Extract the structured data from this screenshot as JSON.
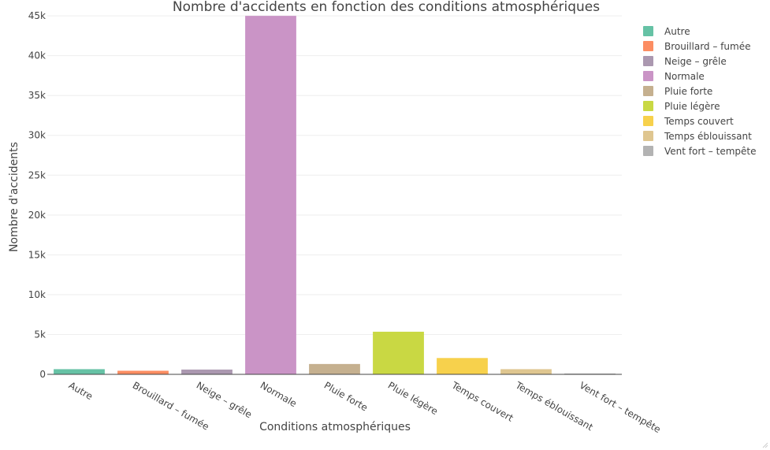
{
  "chart_data": {
    "type": "bar",
    "title": "Nombre d'accidents en fonction des conditions atmosphériques",
    "xlabel": "Conditions atmosphériques",
    "ylabel": "Nombre d'accidents",
    "ylim": [
      0,
      46000
    ],
    "yticks": [
      0,
      5000,
      10000,
      15000,
      20000,
      25000,
      30000,
      35000,
      40000,
      45000
    ],
    "ytick_labels": [
      "0",
      "5k",
      "10k",
      "15k",
      "20k",
      "25k",
      "30k",
      "35k",
      "40k",
      "45k"
    ],
    "grid": true,
    "legend_position": "top-right",
    "categories": [
      "Autre",
      "Brouillard – fumée",
      "Neige – grêle",
      "Normale",
      "Pluie forte",
      "Pluie légère",
      "Temps couvert",
      "Temps éblouissant",
      "Vent fort – tempête"
    ],
    "values": [
      650,
      450,
      600,
      45000,
      1300,
      5350,
      2050,
      650,
      100
    ],
    "colors": [
      "#66c2a5",
      "#fc8d62",
      "#ab98b0",
      "#ca94c6",
      "#c5b08f",
      "#c9d843",
      "#f7d14c",
      "#dfc690",
      "#b3b3b3"
    ]
  }
}
